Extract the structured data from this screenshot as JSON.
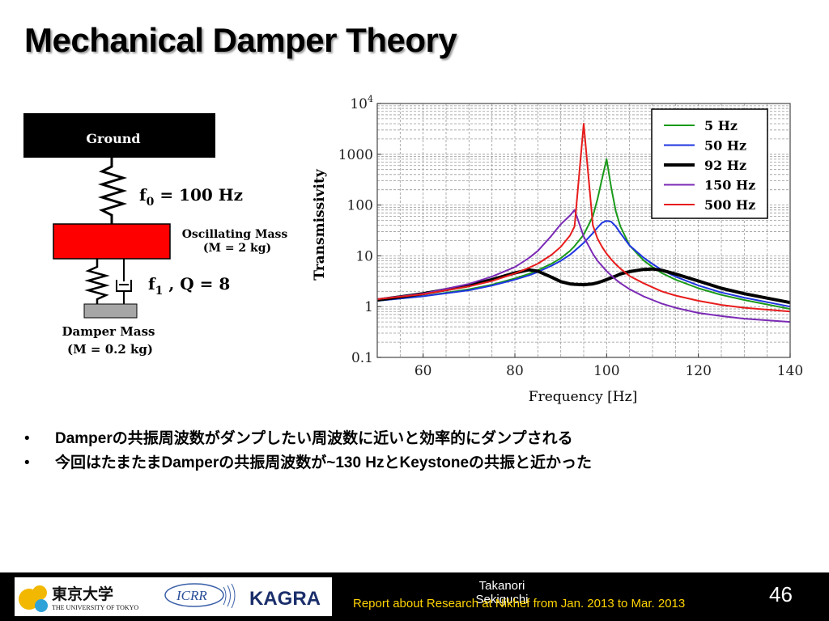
{
  "slide": {
    "title": "Mechanical Damper Theory",
    "page_number": "46"
  },
  "diagram": {
    "ground_label": "Ground",
    "f0_label": "f",
    "f0_sub": "0",
    "f0_value": " = 100 Hz",
    "oscillating_mass_line1": "Oscillating Mass",
    "oscillating_mass_line2": "(M = 2 kg)",
    "f1_label": "f",
    "f1_sub": "1",
    "f1_value": " , Q = 8",
    "damper_mass_line1": "Damper Mass",
    "damper_mass_line2": "(M = 0.2 kg)"
  },
  "bullets": [
    "Damperの共振周波数がダンプしたい周波数に近いと効率的にダンプされる",
    "今回はたまたまDamperの共振周波数が~130 HzとKeystoneの共振と近かった"
  ],
  "footer": {
    "author": "Takanori Sekiguchi",
    "report": "Report about Research at Nikhef from Jan. 2013 to Mar. 2013",
    "logo_utokyo_kanji": "東京大学",
    "logo_utokyo_en": "THE UNIVERSITY OF TOKYO",
    "logo_icrr": "ICRR",
    "logo_kagra": "KAGRA"
  },
  "colors": {
    "ground_box": "#000000",
    "oscillating_mass": "#ff0000",
    "damper_mass": "#a6a6a6",
    "footer_bg": "#000000",
    "footer_report": "#ffd400"
  },
  "chart_data": {
    "type": "line",
    "title": "",
    "xlabel": "Frequency [Hz]",
    "ylabel": "Transmissivity",
    "xlim": [
      50,
      140
    ],
    "ylim": [
      0.1,
      10000
    ],
    "y_scale": "log",
    "grid": true,
    "legend_placement": "top-right",
    "x_ticks": [
      "60",
      "80",
      "100",
      "120",
      "140"
    ],
    "y_ticks": [
      "0.1",
      "1",
      "10",
      "100",
      "1000",
      "10^4"
    ],
    "x": [
      50,
      60,
      70,
      75,
      80,
      83,
      85,
      88,
      90,
      92,
      93,
      95,
      97,
      98,
      99,
      100,
      101,
      102,
      103,
      105,
      108,
      110,
      112,
      115,
      120,
      125,
      130,
      140
    ],
    "series": [
      {
        "name": "5 Hz",
        "color": "#1a9a1a",
        "width": 2,
        "values": [
          1.3,
          1.6,
          2.2,
          2.7,
          3.6,
          4.4,
          5.2,
          7.0,
          9.0,
          12.5,
          15.5,
          26,
          60,
          130,
          330,
          800,
          220,
          75,
          38,
          16,
          8.2,
          6.0,
          4.6,
          3.4,
          2.3,
          1.7,
          1.35,
          0.9
        ]
      },
      {
        "name": "50 Hz",
        "color": "#1f35e0",
        "width": 2,
        "values": [
          1.3,
          1.6,
          2.1,
          2.6,
          3.4,
          4.1,
          4.8,
          6.4,
          8.0,
          10.5,
          12.5,
          18,
          28,
          36,
          45,
          49,
          47,
          38,
          28,
          16,
          9.3,
          6.9,
          5.3,
          3.9,
          2.6,
          1.9,
          1.5,
          1.0
        ]
      },
      {
        "name": "92 Hz",
        "color": "#000000",
        "width": 4,
        "values": [
          1.35,
          1.8,
          2.6,
          3.4,
          4.6,
          5.3,
          5.0,
          3.8,
          3.1,
          2.8,
          2.75,
          2.7,
          2.8,
          2.95,
          3.15,
          3.4,
          3.7,
          4.0,
          4.4,
          4.9,
          5.4,
          5.5,
          5.2,
          4.4,
          3.2,
          2.3,
          1.8,
          1.2
        ]
      },
      {
        "name": "150 Hz",
        "color": "#7b2ab5",
        "width": 2,
        "values": [
          1.4,
          1.8,
          2.8,
          3.9,
          6.0,
          9.0,
          12.5,
          25,
          42,
          62,
          80,
          24,
          11,
          8.0,
          6.3,
          5.0,
          4.1,
          3.4,
          2.9,
          2.2,
          1.6,
          1.35,
          1.15,
          0.95,
          0.75,
          0.65,
          0.58,
          0.5
        ]
      },
      {
        "name": "500 Hz",
        "color": "#e81c1c",
        "width": 2,
        "values": [
          1.4,
          1.75,
          2.5,
          3.2,
          4.5,
          5.8,
          7.0,
          10.5,
          15,
          25,
          38,
          4000,
          40,
          22,
          15,
          11,
          8.5,
          6.8,
          5.6,
          4.0,
          2.9,
          2.4,
          2.0,
          1.65,
          1.3,
          1.08,
          0.95,
          0.8
        ]
      }
    ]
  }
}
